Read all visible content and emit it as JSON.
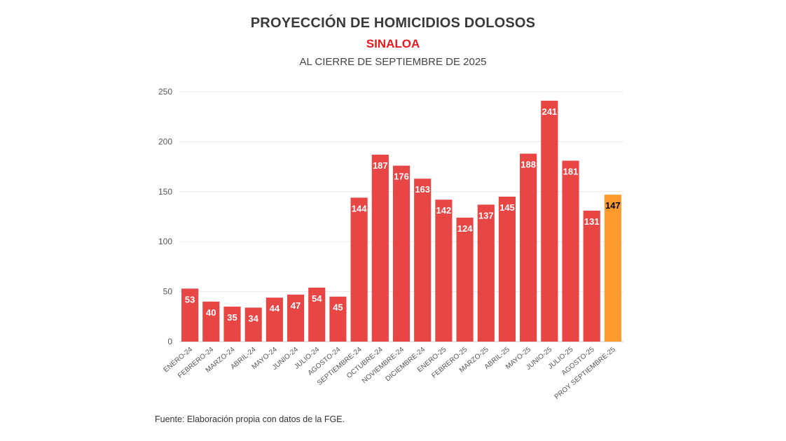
{
  "title": "PROYECCIÓN DE HOMICIDIOS DOLOSOS",
  "subtitle": "SINALOA",
  "subtitle2": "AL CIERRE DE SEPTIEMBRE DE 2025",
  "source": "Fuente: Elaboración propia con datos de la FGE.",
  "colors": {
    "bar": "#e84545",
    "projection": "#ff9a2e",
    "label_text": "#ffffff",
    "projection_label_text": "#000000",
    "grid": "#e8e8e8"
  },
  "chart_data": {
    "type": "bar",
    "title": "PROYECCIÓN DE HOMICIDIOS DOLOSOS",
    "subtitle": "SINALOA",
    "xlabel": "",
    "ylabel": "",
    "ylim": [
      0,
      250
    ],
    "yticks": [
      0,
      50,
      100,
      150,
      200,
      250
    ],
    "grid": true,
    "categories": [
      "ENERO-24",
      "FEBRERO-24",
      "MARZO-24",
      "ABRIL-24",
      "MAYO-24",
      "JUNIO-24",
      "JULIO-24",
      "AGOSTO-24",
      "SEPTIEMBRE-24",
      "OCTUBRE-24",
      "NOVIEMBRE-24",
      "DICIEMBRE-24",
      "ENERO-25",
      "FEBRERO-25",
      "MARZO-25",
      "ABRIL-25",
      "MAYO-25",
      "JUNIO-25",
      "JULIO-25",
      "AGOSTO-25",
      "PROY SEPTIEMBRE-25"
    ],
    "values": [
      53,
      40,
      35,
      34,
      44,
      47,
      54,
      45,
      144,
      187,
      176,
      163,
      142,
      124,
      137,
      145,
      188,
      241,
      181,
      131,
      147
    ],
    "highlight_index": 20
  }
}
